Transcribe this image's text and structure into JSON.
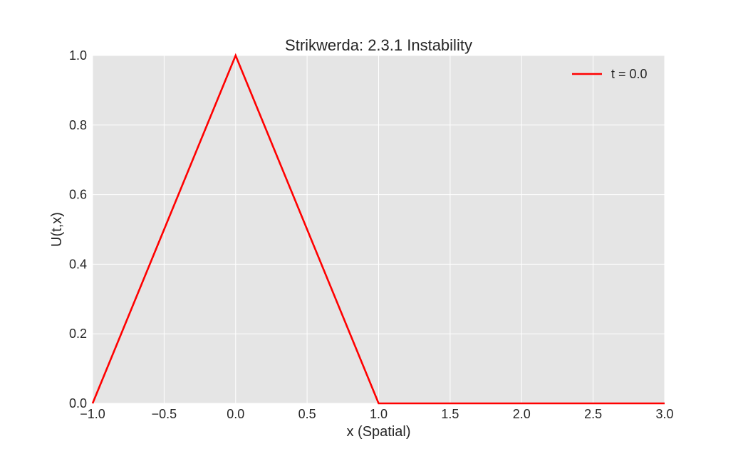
{
  "chart_data": {
    "type": "line",
    "title": "Strikwerda: 2.3.1 Instability",
    "xlabel": "x (Spatial)",
    "ylabel": "U(t,x)",
    "xlim": [
      -1.0,
      3.0
    ],
    "ylim": [
      0.0,
      1.0
    ],
    "xticks": [
      -1.0,
      -0.5,
      0.0,
      0.5,
      1.0,
      1.5,
      2.0,
      2.5,
      3.0
    ],
    "xtick_labels": [
      "−1.0",
      "−0.5",
      "0.0",
      "0.5",
      "1.0",
      "1.5",
      "2.0",
      "2.5",
      "3.0"
    ],
    "yticks": [
      0.0,
      0.2,
      0.4,
      0.6,
      0.8,
      1.0
    ],
    "ytick_labels": [
      "0.0",
      "0.2",
      "0.4",
      "0.6",
      "0.8",
      "1.0"
    ],
    "grid": true,
    "legend_position": "top-right",
    "series": [
      {
        "name": "t = 0.0",
        "color": "#ff0000",
        "x": [
          -1.0,
          0.0,
          1.0,
          3.0
        ],
        "y": [
          0.0,
          1.0,
          0.0,
          0.0
        ]
      }
    ]
  },
  "colors": {
    "plot_background": "#e5e5e5",
    "grid": "#ffffff"
  }
}
